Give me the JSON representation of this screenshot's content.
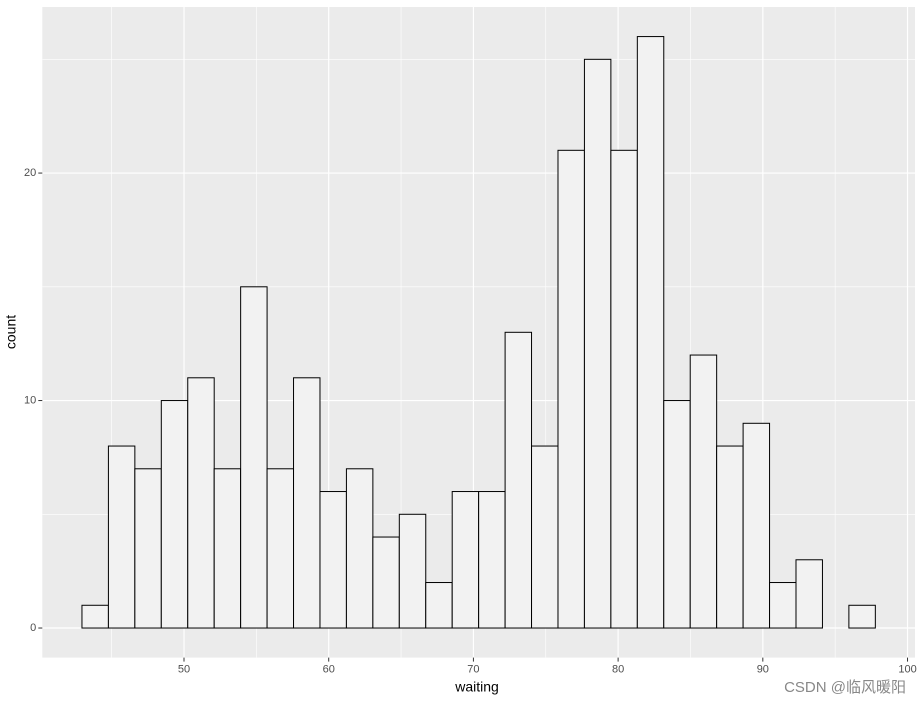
{
  "chart_data": {
    "type": "histogram",
    "x_label": "waiting",
    "y_label": "count",
    "bins": [
      42.948,
      44.776,
      46.603,
      48.431,
      50.259,
      52.086,
      53.914,
      55.741,
      57.569,
      59.397,
      61.224,
      63.052,
      64.879,
      66.707,
      68.534,
      70.362,
      72.19,
      74.017,
      75.845,
      77.672,
      79.5,
      81.328,
      83.155,
      84.983,
      86.81,
      88.638,
      90.466,
      92.293,
      94.121,
      95.948,
      97.776
    ],
    "values": [
      1,
      8,
      7,
      10,
      11,
      7,
      15,
      7,
      11,
      6,
      7,
      4,
      5,
      2,
      6,
      6,
      13,
      8,
      21,
      25,
      21,
      26,
      10,
      12,
      8,
      9,
      2,
      3,
      0,
      1
    ],
    "color": "#f2f2f2",
    "edge_color": "#000000",
    "xlim": [
      40.207,
      100.517
    ],
    "xticks": [
      50,
      60,
      70,
      80,
      90,
      100
    ],
    "ylim": [
      -1.3,
      27.3
    ],
    "yticks": [
      0,
      10,
      20
    ],
    "grid": true,
    "panel_color": "#ebebeb",
    "watermark": "CSDN @临风暖阳"
  }
}
